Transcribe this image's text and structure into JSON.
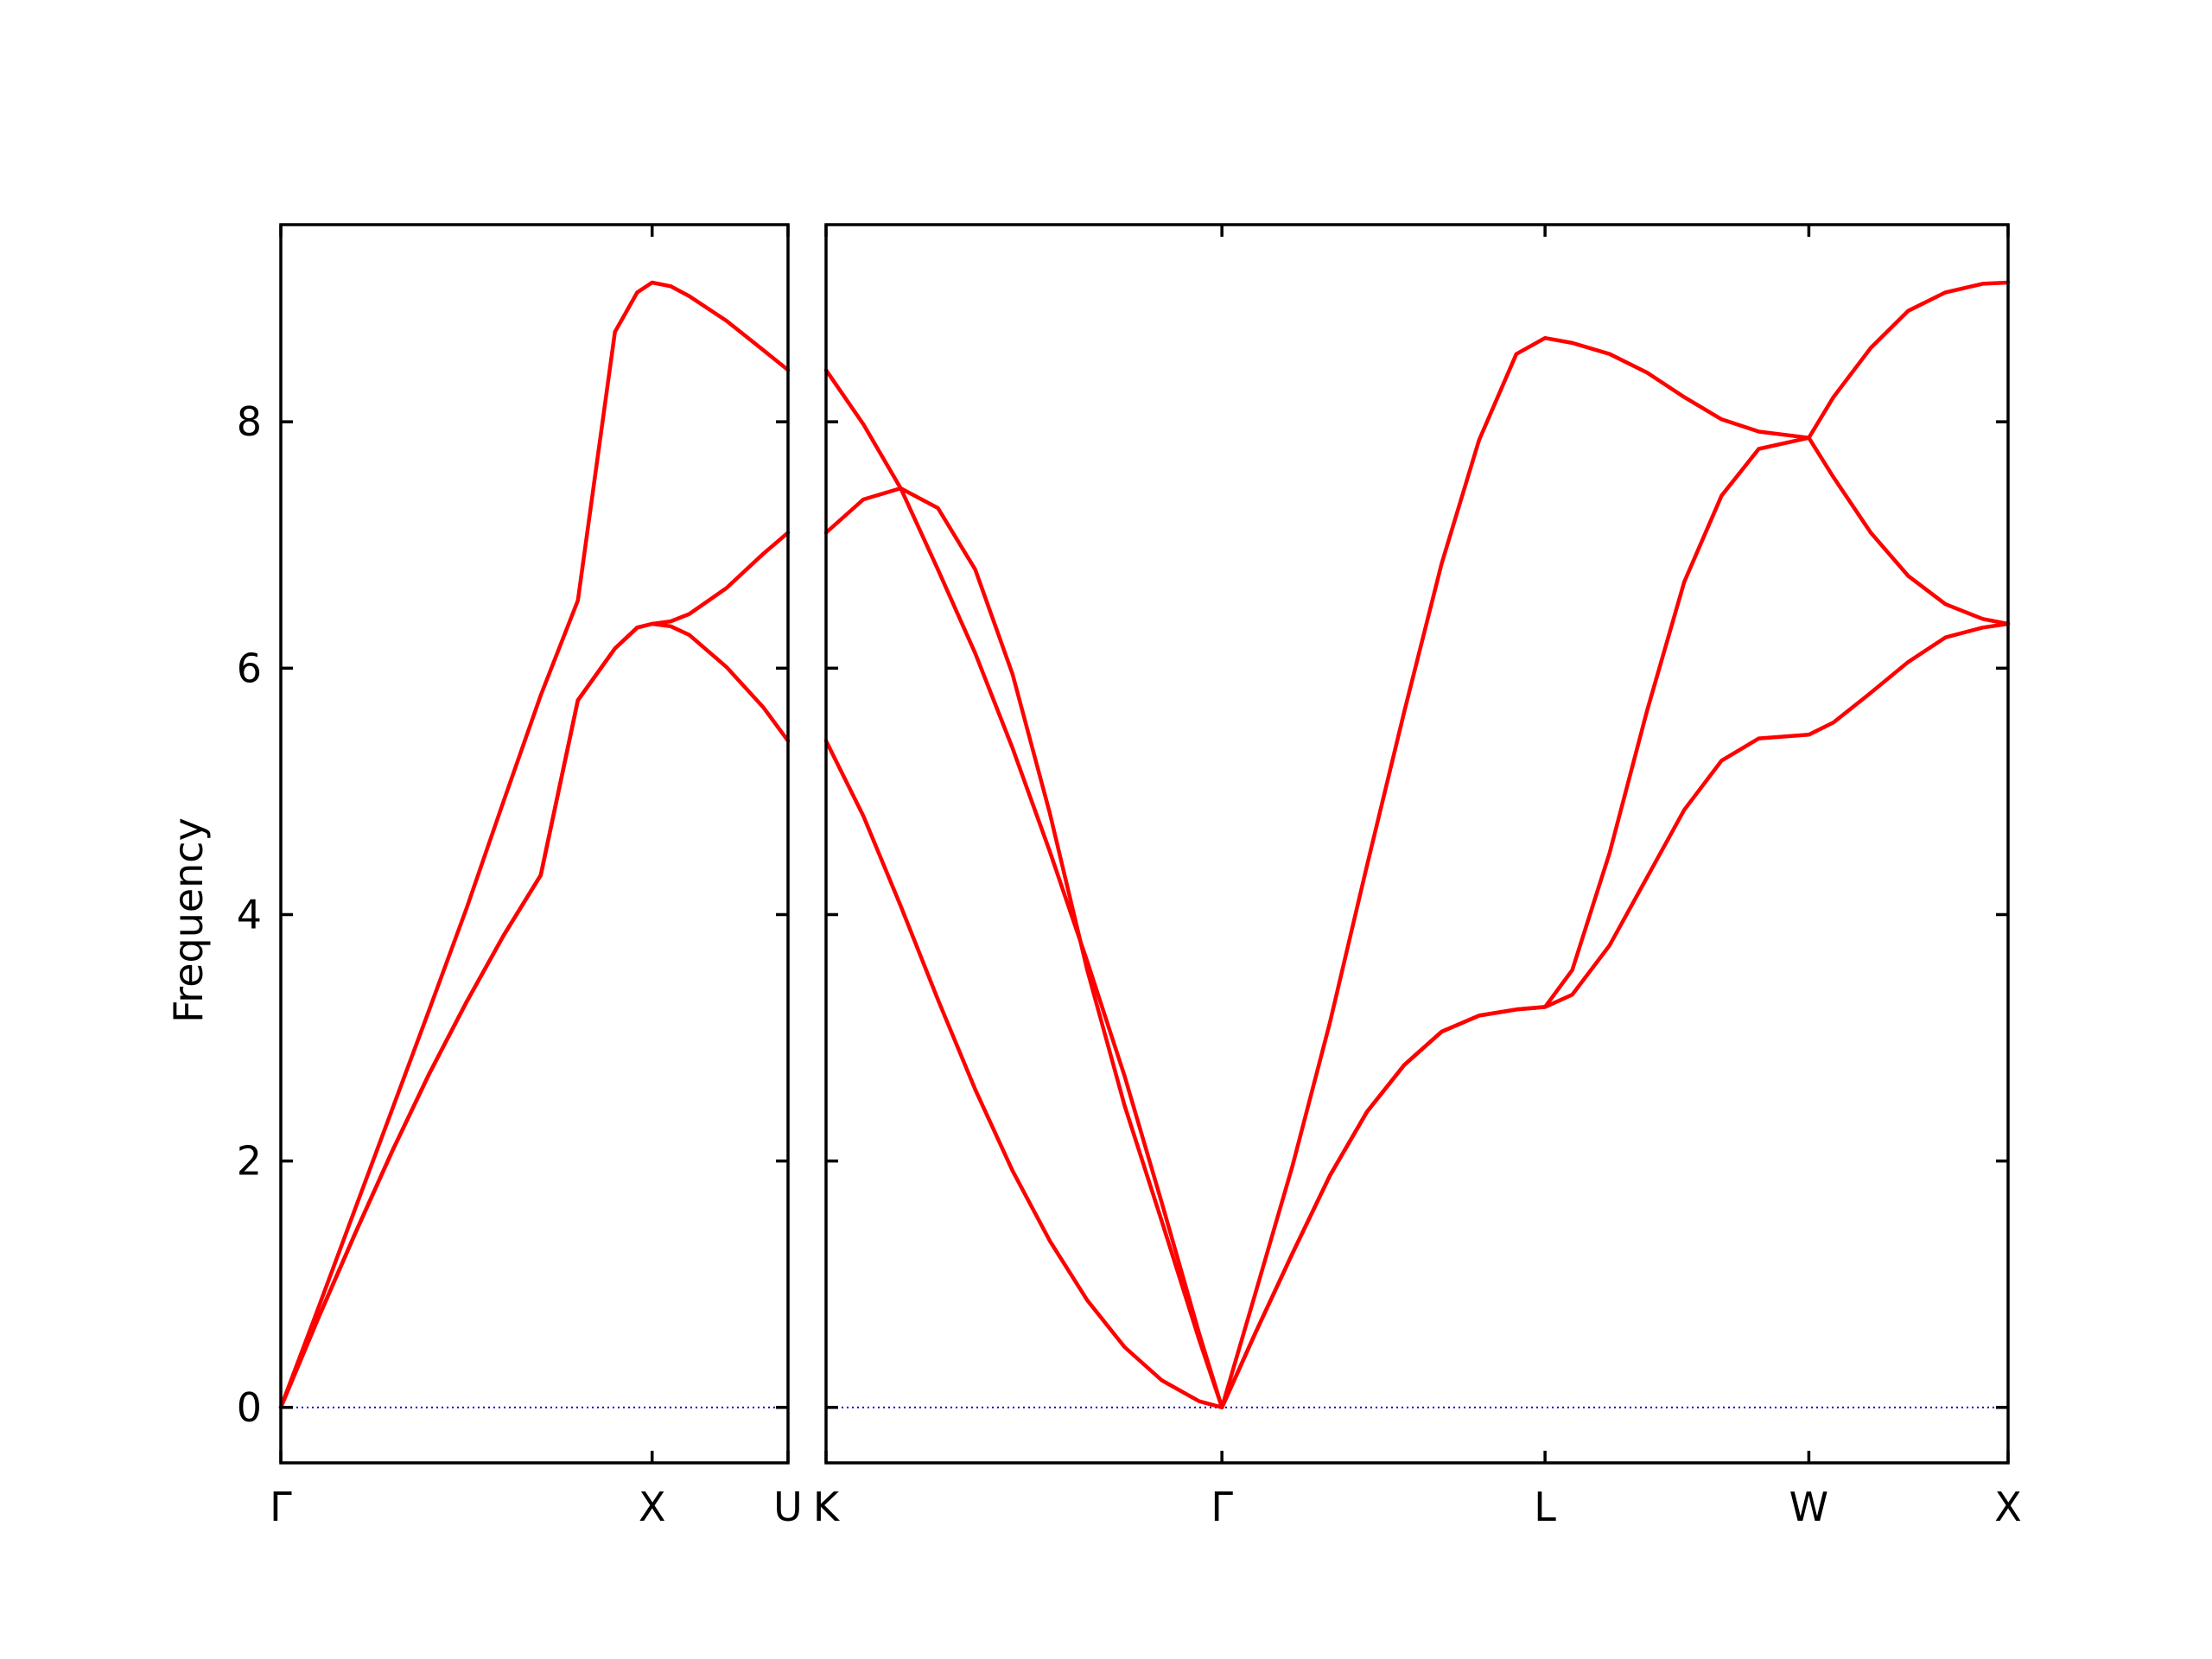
{
  "chart_data": {
    "type": "line",
    "title": "",
    "ylabel": "Frequency",
    "ylim": [
      -0.45,
      9.6
    ],
    "yticks": [
      0,
      2,
      4,
      6,
      8
    ],
    "grid": false,
    "legend": "none",
    "colors": {
      "bands": "#ff0000",
      "zero_line": "#0000cc",
      "axes": "#000000"
    },
    "panels": [
      {
        "name": "panel-1",
        "xlim": [
          0,
          1.366
        ],
        "ticks": [
          {
            "x": 0,
            "label": "Γ"
          },
          {
            "x": 1.0,
            "label": "X"
          },
          {
            "x": 1.366,
            "label": "U"
          }
        ],
        "series": [
          {
            "points": [
              [
                0,
                0
              ],
              [
                0.1,
                0.8
              ],
              [
                0.2,
                1.61
              ],
              [
                0.3,
                2.42
              ],
              [
                0.4,
                3.23
              ],
              [
                0.5,
                4.05
              ],
              [
                0.6,
                4.92
              ],
              [
                0.7,
                5.78
              ],
              [
                0.8,
                6.55
              ],
              [
                0.9,
                8.73
              ],
              [
                0.96,
                9.05
              ],
              [
                1.0,
                9.13
              ],
              [
                1.05,
                9.1
              ],
              [
                1.1,
                9.02
              ],
              [
                1.2,
                8.82
              ],
              [
                1.3,
                8.58
              ],
              [
                1.366,
                8.42
              ]
            ]
          },
          {
            "points": [
              [
                0,
                0
              ],
              [
                0.1,
                0.72
              ],
              [
                0.2,
                1.41
              ],
              [
                0.3,
                2.08
              ],
              [
                0.4,
                2.71
              ],
              [
                0.5,
                3.29
              ],
              [
                0.6,
                3.83
              ],
              [
                0.7,
                4.32
              ],
              [
                0.8,
                5.74
              ],
              [
                0.9,
                6.16
              ],
              [
                0.96,
                6.33
              ],
              [
                1.0,
                6.36
              ],
              [
                1.05,
                6.38
              ],
              [
                1.1,
                6.44
              ],
              [
                1.2,
                6.65
              ],
              [
                1.3,
                6.93
              ],
              [
                1.366,
                7.1
              ]
            ]
          },
          {
            "points": [
              [
                0,
                0
              ],
              [
                0.1,
                0.72
              ],
              [
                0.2,
                1.41
              ],
              [
                0.3,
                2.08
              ],
              [
                0.4,
                2.71
              ],
              [
                0.5,
                3.29
              ],
              [
                0.6,
                3.83
              ],
              [
                0.7,
                4.32
              ],
              [
                0.8,
                5.74
              ],
              [
                0.9,
                6.16
              ],
              [
                0.96,
                6.33
              ],
              [
                1.0,
                6.36
              ],
              [
                1.05,
                6.34
              ],
              [
                1.1,
                6.27
              ],
              [
                1.2,
                6.01
              ],
              [
                1.3,
                5.68
              ],
              [
                1.366,
                5.41
              ]
            ]
          }
        ]
      },
      {
        "name": "panel-2",
        "xlim": [
          0,
          3.168
        ],
        "ticks": [
          {
            "x": 0,
            "label": "K"
          },
          {
            "x": 1.061,
            "label": "Γ"
          },
          {
            "x": 1.927,
            "label": "L"
          },
          {
            "x": 2.634,
            "label": "W"
          },
          {
            "x": 3.168,
            "label": "X"
          }
        ],
        "series": [
          {
            "points": [
              [
                0,
                8.42
              ],
              [
                0.1,
                7.98
              ],
              [
                0.2,
                7.46
              ],
              [
                0.3,
                6.8
              ],
              [
                0.4,
                6.12
              ],
              [
                0.5,
                5.35
              ],
              [
                0.6,
                4.51
              ],
              [
                0.7,
                3.62
              ],
              [
                0.8,
                2.69
              ],
              [
                0.9,
                1.66
              ],
              [
                1.0,
                0.6
              ],
              [
                1.061,
                0
              ],
              [
                1.15,
                0.92
              ],
              [
                1.25,
                1.96
              ],
              [
                1.35,
                3.12
              ],
              [
                1.45,
                4.4
              ],
              [
                1.55,
                5.65
              ],
              [
                1.65,
                6.85
              ],
              [
                1.75,
                7.85
              ],
              [
                1.85,
                8.55
              ],
              [
                1.927,
                8.68
              ],
              [
                2.0,
                8.64
              ],
              [
                2.1,
                8.55
              ],
              [
                2.2,
                8.4
              ],
              [
                2.3,
                8.2
              ],
              [
                2.4,
                8.02
              ],
              [
                2.5,
                7.92
              ],
              [
                2.634,
                7.87
              ],
              [
                2.7,
                8.2
              ],
              [
                2.8,
                8.6
              ],
              [
                2.9,
                8.9
              ],
              [
                3.0,
                9.05
              ],
              [
                3.1,
                9.12
              ],
              [
                3.168,
                9.13
              ]
            ]
          },
          {
            "points": [
              [
                0,
                7.1
              ],
              [
                0.1,
                7.37
              ],
              [
                0.2,
                7.46
              ],
              [
                0.3,
                7.3
              ],
              [
                0.4,
                6.8
              ],
              [
                0.5,
                5.95
              ],
              [
                0.6,
                4.82
              ],
              [
                0.7,
                3.55
              ],
              [
                0.8,
                2.45
              ],
              [
                0.9,
                1.51
              ],
              [
                1.0,
                0.55
              ],
              [
                1.061,
                0
              ],
              [
                1.15,
                0.6
              ],
              [
                1.25,
                1.25
              ],
              [
                1.35,
                1.88
              ],
              [
                1.45,
                2.4
              ],
              [
                1.55,
                2.78
              ],
              [
                1.65,
                3.05
              ],
              [
                1.75,
                3.18
              ],
              [
                1.85,
                3.23
              ],
              [
                1.927,
                3.25
              ],
              [
                2.0,
                3.55
              ],
              [
                2.1,
                4.5
              ],
              [
                2.2,
                5.65
              ],
              [
                2.3,
                6.7
              ],
              [
                2.4,
                7.4
              ],
              [
                2.5,
                7.78
              ],
              [
                2.634,
                7.87
              ],
              [
                2.7,
                7.55
              ],
              [
                2.8,
                7.1
              ],
              [
                2.9,
                6.75
              ],
              [
                3.0,
                6.52
              ],
              [
                3.1,
                6.4
              ],
              [
                3.168,
                6.36
              ]
            ]
          },
          {
            "points": [
              [
                0,
                5.41
              ],
              [
                0.1,
                4.8
              ],
              [
                0.2,
                4.07
              ],
              [
                0.3,
                3.31
              ],
              [
                0.4,
                2.58
              ],
              [
                0.5,
                1.92
              ],
              [
                0.6,
                1.35
              ],
              [
                0.7,
                0.87
              ],
              [
                0.8,
                0.49
              ],
              [
                0.9,
                0.22
              ],
              [
                1.0,
                0.05
              ],
              [
                1.061,
                0
              ],
              [
                1.15,
                0.6
              ],
              [
                1.25,
                1.25
              ],
              [
                1.35,
                1.88
              ],
              [
                1.45,
                2.4
              ],
              [
                1.55,
                2.78
              ],
              [
                1.65,
                3.05
              ],
              [
                1.75,
                3.18
              ],
              [
                1.85,
                3.23
              ],
              [
                1.927,
                3.25
              ],
              [
                2.0,
                3.35
              ],
              [
                2.1,
                3.75
              ],
              [
                2.2,
                4.3
              ],
              [
                2.3,
                4.85
              ],
              [
                2.4,
                5.25
              ],
              [
                2.5,
                5.43
              ],
              [
                2.634,
                5.46
              ],
              [
                2.7,
                5.56
              ],
              [
                2.8,
                5.8
              ],
              [
                2.9,
                6.05
              ],
              [
                3.0,
                6.25
              ],
              [
                3.1,
                6.33
              ],
              [
                3.168,
                6.36
              ]
            ]
          }
        ]
      }
    ]
  }
}
